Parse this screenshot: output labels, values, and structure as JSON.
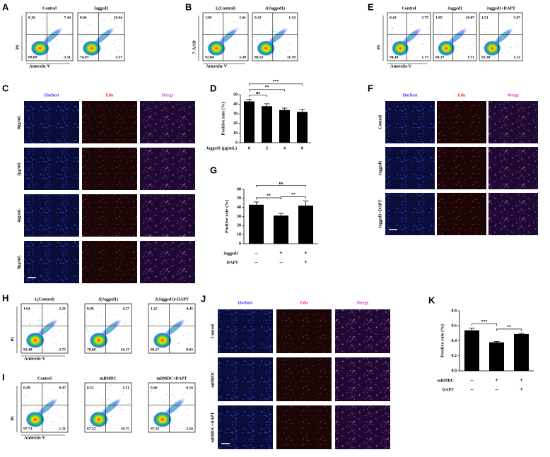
{
  "flow": {
    "A": {
      "letter": "A",
      "ylabel": "PI",
      "xlabel": "Annexin-V",
      "plots": [
        {
          "title": "Control",
          "quadrants": [
            "0.16",
            "7.44",
            "89.09",
            "3.31"
          ]
        },
        {
          "title": "Jagged1",
          "quadrants": [
            "0.06",
            "19.44",
            "74.93",
            "5.57"
          ]
        }
      ]
    },
    "B": {
      "letter": "B",
      "ylabel": "7-AAD",
      "xlabel": "Annexin-V",
      "plots": [
        {
          "title": "L(Control)",
          "quadrants": [
            "1.05",
            "1.61",
            "92.04",
            "5.30"
          ]
        },
        {
          "title": "J(Jagged1)",
          "quadrants": [
            "0.23",
            "1.54",
            "86.53",
            "11.70"
          ]
        }
      ]
    },
    "E": {
      "letter": "E",
      "ylabel": "PI",
      "xlabel": "Annexin-V",
      "plots": [
        {
          "title": "Control",
          "quadrants": [
            "0.42",
            "3.75",
            "94.10",
            "1.73"
          ]
        },
        {
          "title": "Jagged1",
          "quadrants": [
            "1.85",
            "10.07",
            "86.37",
            "1.71"
          ]
        },
        {
          "title": "Jagged1+DAPT",
          "quadrants": [
            "1.51",
            "5.07",
            "92.30",
            "1.12"
          ]
        }
      ]
    },
    "H": {
      "letter": "H",
      "ylabel": "PI",
      "xlabel": "Annexin-V",
      "plots": [
        {
          "title": "L(Control)",
          "quadrants": [
            "1.64",
            "2.21",
            "92.40",
            "3.75"
          ]
        },
        {
          "title": "J(Jagged1)",
          "quadrants": [
            "0.96",
            "4.27",
            "78.60",
            "16.17"
          ]
        },
        {
          "title": "J(Jagged1)+DAPT",
          "quadrants": [
            "1.25",
            "4.45",
            "86.27",
            "8.03"
          ]
        }
      ]
    },
    "I": {
      "letter": "I",
      "ylabel": "PI",
      "xlabel": "Annexin-V",
      "plots": [
        {
          "title": "Control",
          "quadrants": [
            "0.49",
            "0.47",
            "97.73",
            "1.31"
          ]
        },
        {
          "title": "mBMDC",
          "quadrants": [
            "0.52",
            "1.51",
            "87.22",
            "10.75"
          ]
        },
        {
          "title": "mBMDC+DAPT",
          "quadrants": [
            "0.46",
            "0.16",
            "97.22",
            "2.16"
          ]
        }
      ]
    }
  },
  "imaging": {
    "C": {
      "letter": "C",
      "columns": [
        "Hochest",
        "Edu",
        "Merge"
      ],
      "rows": [
        "0μg/mL",
        "2μg/mL",
        "4μg/mL",
        "8μg/mL"
      ]
    },
    "F": {
      "letter": "F",
      "columns": [
        "Hochest",
        "Edu",
        "Merge"
      ],
      "rows": [
        "Control",
        "Jagged1",
        "Jagged1+DAPT"
      ]
    },
    "J": {
      "letter": "J",
      "columns": [
        "Hochest",
        "Edu",
        "Merge"
      ],
      "rows": [
        "Control",
        "mBMDC",
        "mBMDC+DAPT"
      ]
    }
  },
  "chart_data": [
    {
      "type": "bar",
      "letter": "D",
      "ylabel": "Positive rate (%)",
      "xlabel": "Jagged1 (μg/mL)",
      "categories": [
        "0",
        "2",
        "4",
        "8"
      ],
      "values": [
        43,
        38,
        34,
        32
      ],
      "errors": [
        2,
        2.5,
        2,
        2.5
      ],
      "color": "#000000",
      "ylim": [
        0,
        50
      ],
      "yticks": [
        0,
        10,
        20,
        30,
        40,
        50
      ],
      "significance": [
        {
          "label": "ns",
          "from": 0,
          "to": 1
        },
        {
          "label": "**",
          "from": 0,
          "to": 2
        },
        {
          "label": "***",
          "from": 0,
          "to": 3
        }
      ]
    },
    {
      "type": "bar",
      "letter": "G",
      "ylabel": "Positive rate (%)",
      "conditions": [
        {
          "name": "Jagged1",
          "marks": [
            "–",
            "+",
            "+"
          ]
        },
        {
          "name": "DAPT",
          "marks": [
            "–",
            "–",
            "+"
          ]
        }
      ],
      "values": [
        43,
        31,
        42
      ],
      "errors": [
        3,
        2.5,
        5
      ],
      "color": "#000000",
      "ylim": [
        0,
        60
      ],
      "yticks": [
        0,
        10,
        20,
        30,
        40,
        50,
        60
      ],
      "significance": [
        {
          "label": "**",
          "from": 0,
          "to": 1
        },
        {
          "label": "**",
          "from": 1,
          "to": 2
        },
        {
          "label": "ns",
          "from": 0,
          "to": 2
        }
      ]
    },
    {
      "type": "bar",
      "letter": "K",
      "ylabel": "Positive rate (%)",
      "conditions": [
        {
          "name": "mBMDC",
          "marks": [
            "–",
            "+",
            "+"
          ]
        },
        {
          "name": "DAPT",
          "marks": [
            "–",
            "–",
            "+"
          ]
        }
      ],
      "values": [
        0.54,
        0.38,
        0.49
      ],
      "errors": [
        0.03,
        0.01,
        0.01
      ],
      "color": "#000000",
      "ylim": [
        0,
        0.8
      ],
      "yticks": [
        {
          "value": 0,
          "label": "0.0"
        },
        0.2,
        0.4,
        0.6,
        0.8
      ],
      "significance": [
        {
          "label": "***",
          "from": 0,
          "to": 1
        },
        {
          "label": "**",
          "from": 1,
          "to": 2
        }
      ]
    }
  ]
}
